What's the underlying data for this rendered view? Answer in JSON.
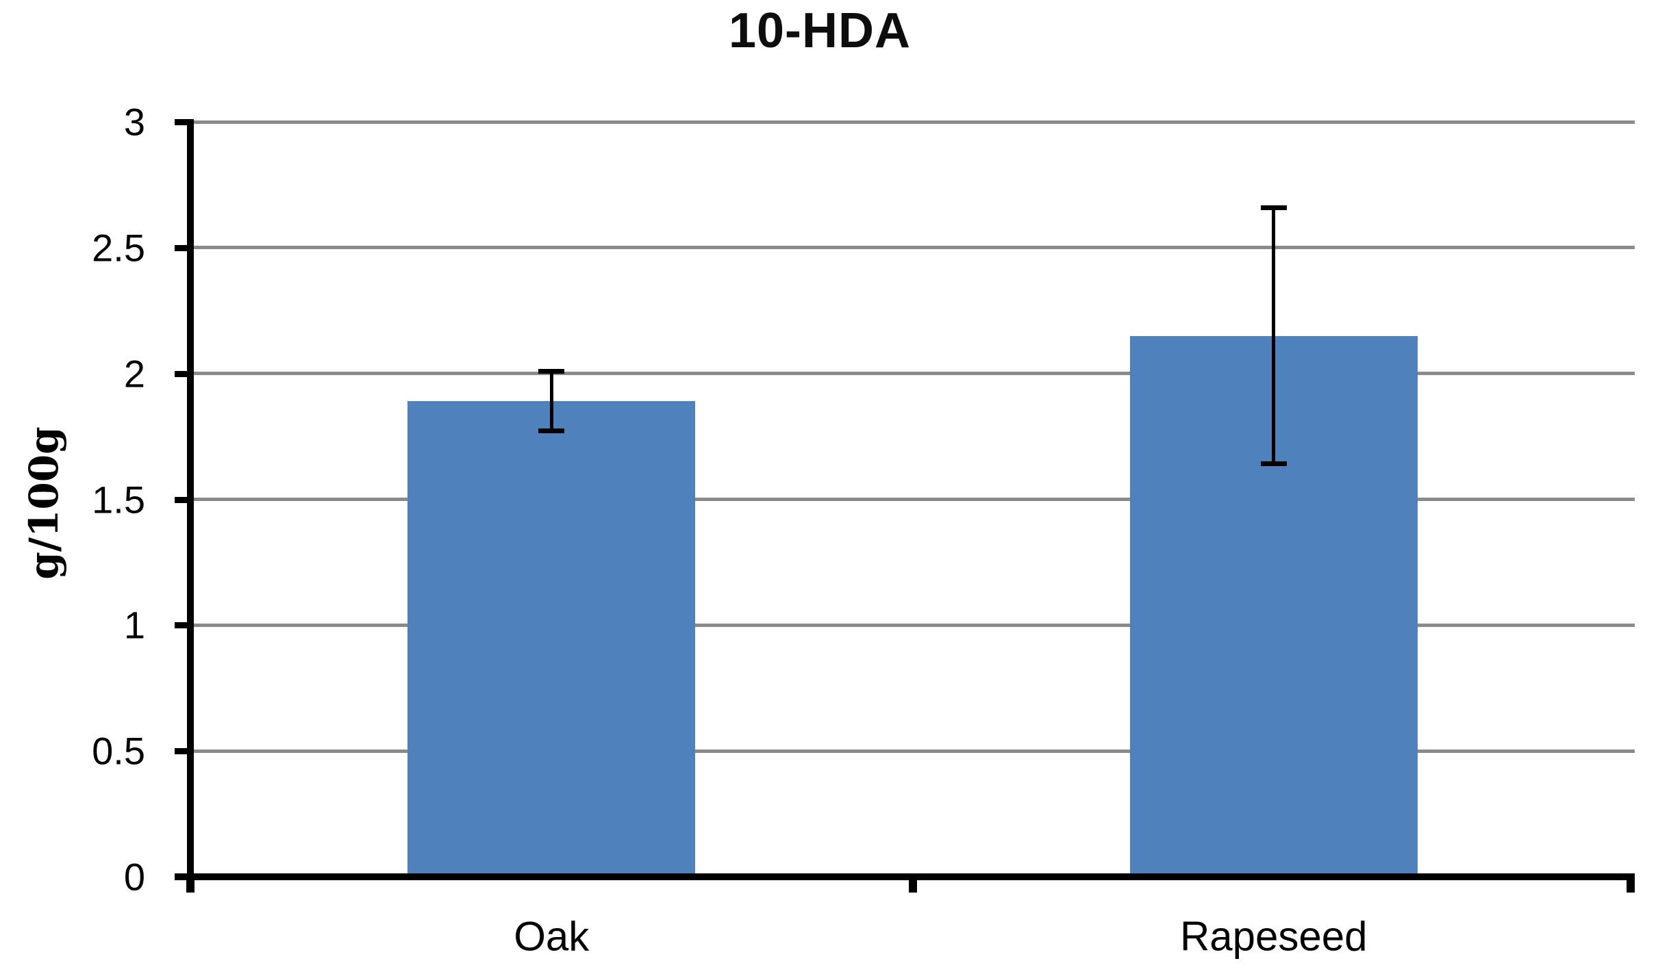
{
  "title": "10-HDA",
  "colors": {
    "bar_fill": "#4f81bd",
    "gridline": "#8a8a8a",
    "axis": "#000000",
    "text": "#000000"
  },
  "chart_data": {
    "type": "bar",
    "title": "10-HDA",
    "xlabel": "",
    "ylabel": "g/100g",
    "categories": [
      "Oak",
      "Rapeseed"
    ],
    "values": [
      1.89,
      2.15
    ],
    "error_bars": {
      "plus": [
        0.12,
        0.51
      ],
      "minus": [
        0.12,
        0.51
      ]
    },
    "ylim": [
      0,
      3
    ],
    "ytick_step": 0.5,
    "ytick_labels": [
      "0",
      "0.5",
      "1",
      "1.5",
      "2",
      "2.5",
      "3"
    ],
    "grid": true,
    "legend": false,
    "bar_color": "#4f81bd"
  }
}
